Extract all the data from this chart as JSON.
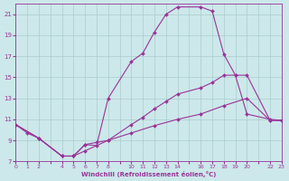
{
  "xlabel": "Windchill (Refroidissement éolien,°C)",
  "background_color": "#cce8ea",
  "grid_color": "#aacccc",
  "line_color": "#993399",
  "xlim": [
    0,
    23
  ],
  "ylim": [
    7,
    22
  ],
  "xticks": [
    0,
    1,
    2,
    4,
    5,
    6,
    7,
    8,
    10,
    11,
    12,
    13,
    14,
    16,
    17,
    18,
    19,
    20,
    22,
    23
  ],
  "yticks": [
    7,
    9,
    11,
    13,
    15,
    17,
    19,
    21
  ],
  "line1_x": [
    0,
    1,
    2,
    4,
    5,
    6,
    7,
    8,
    10,
    11,
    12,
    13,
    14,
    16,
    17,
    18,
    19,
    20,
    22,
    23
  ],
  "line1_y": [
    10.5,
    9.7,
    9.2,
    7.5,
    7.5,
    8.6,
    8.5,
    13.0,
    16.5,
    17.3,
    19.3,
    21.0,
    21.7,
    21.7,
    21.3,
    17.2,
    15.2,
    11.5,
    11.0,
    10.9
  ],
  "line2_x": [
    0,
    2,
    4,
    5,
    6,
    7,
    8,
    10,
    11,
    12,
    13,
    14,
    16,
    17,
    18,
    19,
    20,
    22,
    23
  ],
  "line2_y": [
    10.5,
    9.2,
    7.5,
    7.5,
    8.6,
    8.8,
    9.0,
    10.5,
    11.2,
    12.0,
    12.7,
    13.4,
    14.0,
    14.5,
    15.2,
    15.2,
    15.2,
    10.9,
    10.9
  ],
  "line3_x": [
    0,
    2,
    4,
    5,
    6,
    8,
    10,
    12,
    14,
    16,
    18,
    20,
    22,
    23
  ],
  "line3_y": [
    10.5,
    9.2,
    7.5,
    7.5,
    8.0,
    9.0,
    9.7,
    10.4,
    11.0,
    11.5,
    12.3,
    13.0,
    10.9,
    10.9
  ]
}
